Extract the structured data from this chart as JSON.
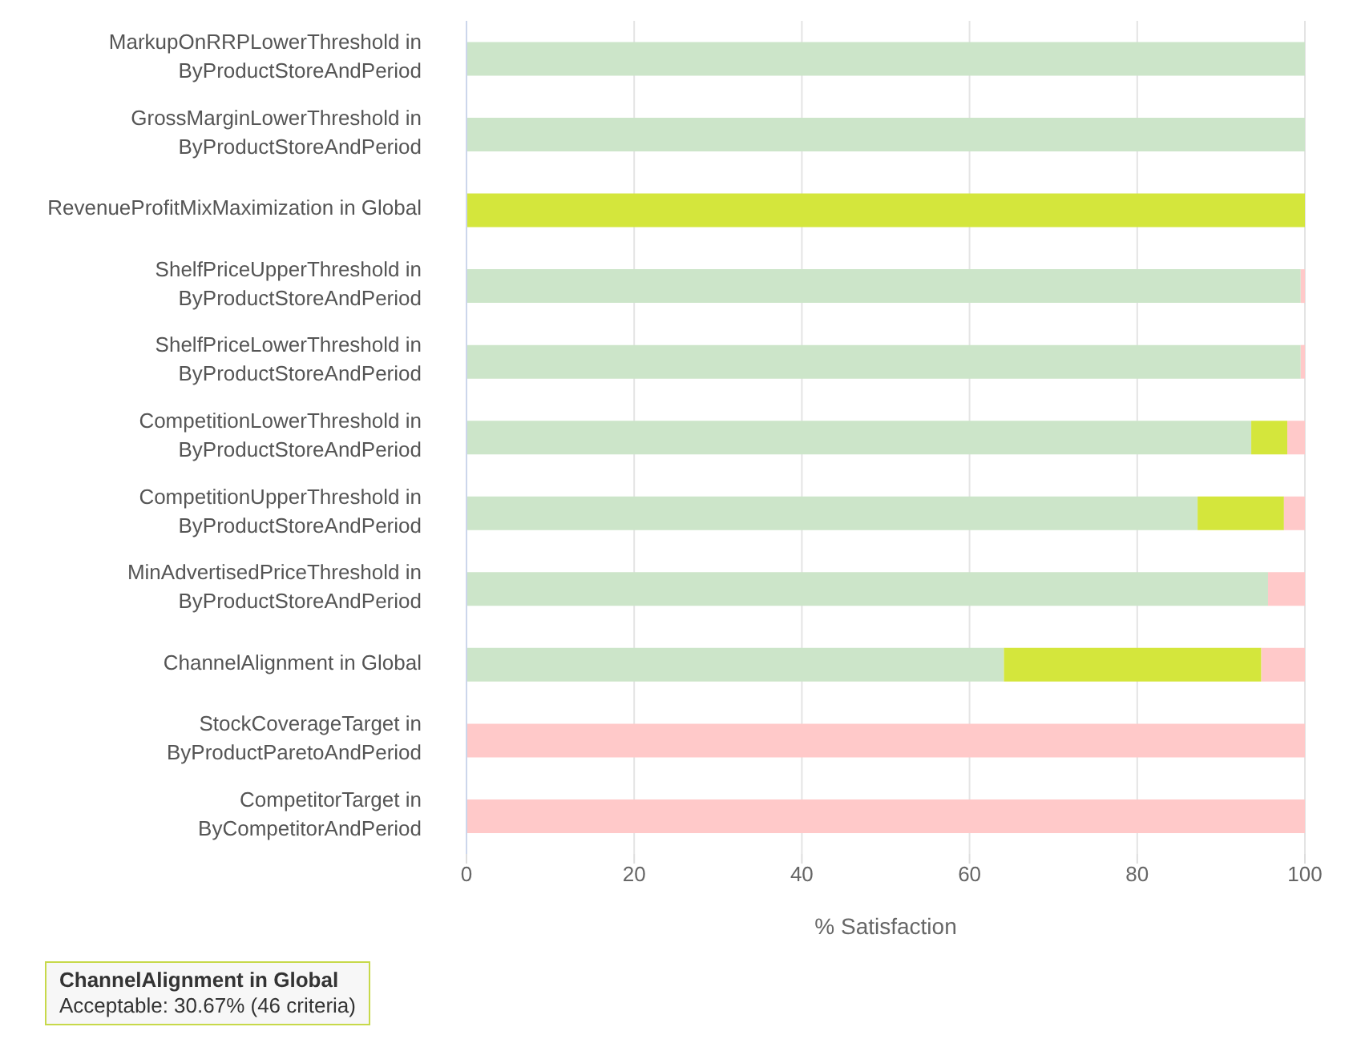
{
  "chart_data": {
    "type": "bar",
    "orientation": "horizontal",
    "stacked": true,
    "xlabel": "% Satisfaction",
    "categories": [
      "MarkupOnRRPLowerThreshold in ByProductStoreAndPeriod",
      "GrossMarginLowerThreshold in ByProductStoreAndPeriod",
      "RevenueProfitMixMaximization in Global",
      "ShelfPriceUpperThreshold in ByProductStoreAndPeriod",
      "ShelfPriceLowerThreshold in ByProductStoreAndPeriod",
      "CompetitionLowerThreshold in ByProductStoreAndPeriod",
      "CompetitionUpperThreshold in ByProductStoreAndPeriod",
      "MinAdvertisedPriceThreshold in ByProductStoreAndPeriod",
      "ChannelAlignment in Global",
      "StockCoverageTarget in ByProductParetoAndPeriod",
      "CompetitorTarget in ByCompetitorAndPeriod"
    ],
    "series": [
      {
        "color": "#cce5c9",
        "values": [
          100,
          100,
          0,
          99.5,
          99.5,
          93.6,
          87.2,
          95.6,
          64.1,
          0,
          0
        ]
      },
      {
        "color": "#d4e63c",
        "values": [
          0,
          0,
          100,
          0,
          0,
          4.3,
          10.3,
          0,
          30.7,
          0,
          0
        ]
      },
      {
        "color": "#ffc9c9",
        "values": [
          0,
          0,
          0,
          0.5,
          0.5,
          2.1,
          2.5,
          4.4,
          5.2,
          100,
          100
        ]
      }
    ],
    "xlim": [
      0,
      100
    ],
    "xticks": [
      0,
      20,
      40,
      60,
      80,
      100
    ],
    "grid": "x",
    "legend": false,
    "annotations": [
      "ChannelAlignment in Global",
      "Acceptable: 30.67% (46 criteria)"
    ]
  }
}
